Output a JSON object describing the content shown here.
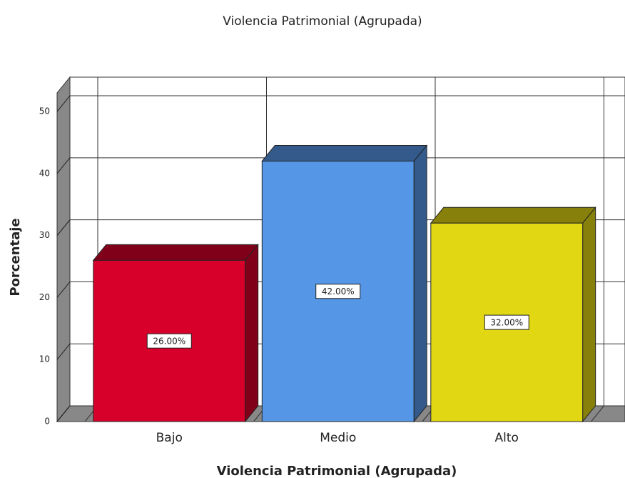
{
  "chart_data": {
    "type": "bar",
    "title": "Violencia Patrimonial (Agrupada)",
    "x_label": "Violencia Patrimonial (Agrupada)",
    "y_label": "Porcentaje",
    "categories": [
      "Bajo",
      "Medio",
      "Alto"
    ],
    "values": [
      26,
      42,
      32
    ],
    "value_labels": [
      "26.00%",
      "42.00%",
      "32.00%"
    ],
    "colors": [
      "#d6002b",
      "#5596e6",
      "#e1d712"
    ],
    "ylim": [
      0,
      53
    ],
    "yticks": [
      0,
      10,
      20,
      30,
      40,
      50
    ],
    "grid": true
  }
}
